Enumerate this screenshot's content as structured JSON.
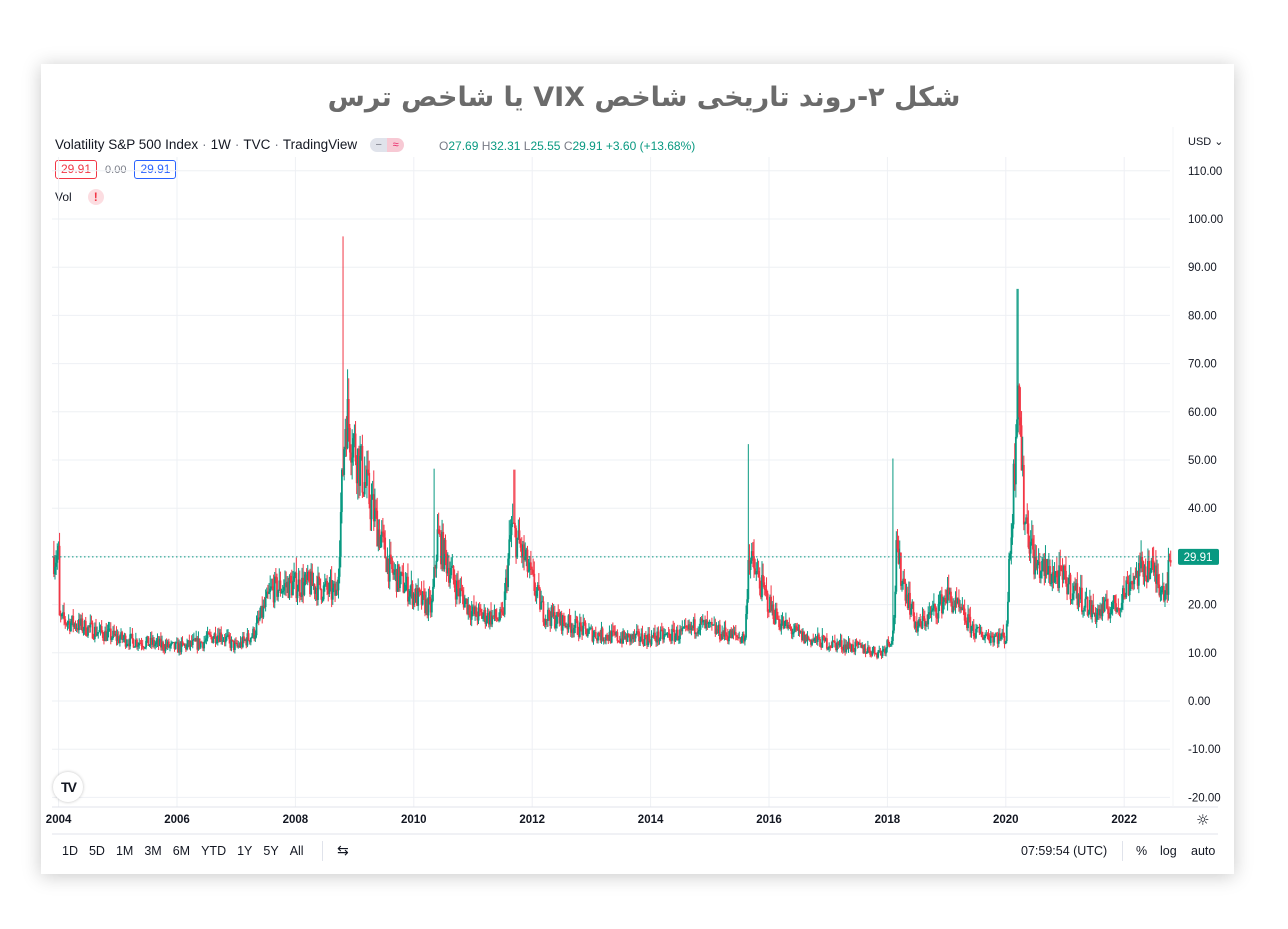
{
  "figure_title": "شکل ۲-روند تاریخی شاخص VIX یا شاخص ترس",
  "header": {
    "symbol_name": "Volatility S&P 500 Index",
    "interval": "1W",
    "exchange": "TVC",
    "source": "TradingView",
    "ohlc": {
      "open_label": "O",
      "open": "27.69",
      "high_label": "H",
      "high": "32.31",
      "low_label": "L",
      "low": "25.55",
      "close_label": "C",
      "close": "29.91",
      "change": "+3.60 (+13.68%)"
    },
    "sell_price": "29.91",
    "spread": "0.00",
    "buy_price": "29.91",
    "volume_label": "Vol",
    "volume_warning_icon": "!",
    "currency": "USD"
  },
  "price_label": {
    "value": "29.91",
    "color": "#089981"
  },
  "bottom_bar": {
    "ranges": [
      "1D",
      "5D",
      "1M",
      "3M",
      "6M",
      "YTD",
      "1Y",
      "5Y",
      "All"
    ],
    "time": "07:59:54 (UTC)",
    "percent": "%",
    "log": "log",
    "auto": "auto"
  },
  "colors": {
    "up": "#089981",
    "down": "#f23645",
    "grid": "#f0f3fa",
    "text": "#131722"
  },
  "chart_data": {
    "type": "candlestick",
    "title": "Volatility S&P 500 Index · 1W · TVC",
    "xlabel": "",
    "ylabel": "USD",
    "y_ticks": [
      "110.00",
      "100.00",
      "90.00",
      "80.00",
      "70.00",
      "60.00",
      "50.00",
      "40.00",
      "30.00",
      "20.00",
      "10.00",
      "0.00",
      "-10.00",
      "-20.00"
    ],
    "x_ticks": [
      "2004",
      "2006",
      "2008",
      "2010",
      "2012",
      "2014",
      "2016",
      "2018",
      "2020",
      "2022"
    ],
    "ylim": [
      -22,
      113
    ],
    "grid": true,
    "last_price": 29.91,
    "anchor_points": {
      "x": [
        2004.0,
        2004.5,
        2005.0,
        2005.5,
        2006.0,
        2006.4,
        2006.7,
        2007.0,
        2007.3,
        2007.6,
        2007.9,
        2008.3,
        2008.7,
        2008.85,
        2008.95,
        2009.2,
        2009.6,
        2010.0,
        2010.3,
        2010.4,
        2010.7,
        2011.0,
        2011.5,
        2011.65,
        2011.85,
        2012.2,
        2012.6,
        2013.0,
        2013.5,
        2014.0,
        2014.6,
        2014.8,
        2015.2,
        2015.6,
        2015.65,
        2016.0,
        2016.2,
        2016.6,
        2017.0,
        2017.5,
        2017.9,
        2018.1,
        2018.15,
        2018.5,
        2018.9,
        2019.0,
        2019.5,
        2020.0,
        2020.15,
        2020.2,
        2020.3,
        2020.5,
        2020.8,
        2021.0,
        2021.5,
        2021.9,
        2022.1,
        2022.4,
        2022.7,
        2022.8
      ],
      "close": [
        17,
        15,
        13,
        12,
        11,
        12,
        14,
        11,
        14,
        23,
        24,
        24,
        22,
        60,
        55,
        44,
        27,
        22,
        19,
        34,
        24,
        18,
        17,
        36,
        30,
        18,
        16,
        14,
        13,
        13,
        14,
        16,
        14,
        13,
        30,
        20,
        16,
        13,
        12,
        11,
        10,
        14,
        30,
        15,
        20,
        22,
        14,
        13,
        50,
        70,
        40,
        28,
        26,
        25,
        18,
        20,
        25,
        28,
        23,
        29.91
      ]
    },
    "notable_highs": [
      {
        "x": 2008.8,
        "high": 96.4
      },
      {
        "x": 2011.7,
        "high": 48.0
      },
      {
        "x": 2010.35,
        "high": 48.2
      },
      {
        "x": 2015.65,
        "high": 53.3
      },
      {
        "x": 2018.1,
        "high": 50.3
      },
      {
        "x": 2020.2,
        "high": 85.5
      }
    ]
  }
}
